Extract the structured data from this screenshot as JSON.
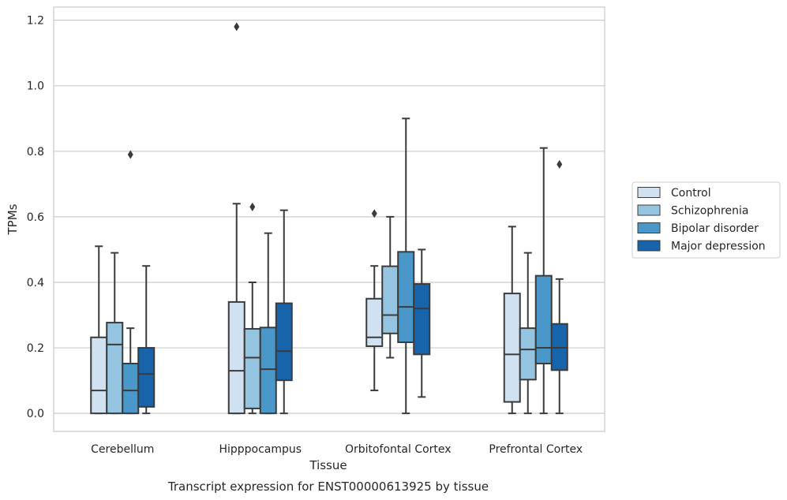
{
  "caption": "Transcript expression for ENST00000613925 by tissue",
  "chart_data": {
    "type": "box",
    "title": "",
    "xlabel": "Tissue",
    "ylabel": "TPMs",
    "ylim": [
      -0.055,
      1.24
    ],
    "yticks": [
      0.0,
      0.2,
      0.4,
      0.6,
      0.8,
      1.0,
      1.2
    ],
    "ytick_labels": [
      "0.0",
      "0.2",
      "0.4",
      "0.6",
      "0.8",
      "1.0",
      "1.2"
    ],
    "grid": "horizontal",
    "legend_position": "right",
    "categories": [
      "Cerebellum",
      "Hipppocampus",
      "Orbitofontal Cortex",
      "Prefrontal Cortex"
    ],
    "series": [
      {
        "name": "Control",
        "color": "#d0e1f2",
        "boxes": [
          {
            "category": "Cerebellum",
            "whisker_low": 0.0,
            "q1": 0.0,
            "median": 0.07,
            "q3": 0.232,
            "whisker_high": 0.51,
            "outliers": []
          },
          {
            "category": "Hipppocampus",
            "whisker_low": 0.0,
            "q1": 0.0,
            "median": 0.13,
            "q3": 0.34,
            "whisker_high": 0.64,
            "outliers": [
              1.18
            ]
          },
          {
            "category": "Orbitofontal Cortex",
            "whisker_low": 0.07,
            "q1": 0.205,
            "median": 0.232,
            "q3": 0.35,
            "whisker_high": 0.45,
            "outliers": [
              0.61
            ]
          },
          {
            "category": "Prefrontal Cortex",
            "whisker_low": 0.0,
            "q1": 0.035,
            "median": 0.18,
            "q3": 0.366,
            "whisker_high": 0.57,
            "outliers": []
          }
        ]
      },
      {
        "name": "Schizophrenia",
        "color": "#94c4df",
        "boxes": [
          {
            "category": "Cerebellum",
            "whisker_low": 0.0,
            "q1": 0.0,
            "median": 0.21,
            "q3": 0.277,
            "whisker_high": 0.49,
            "outliers": []
          },
          {
            "category": "Hipppocampus",
            "whisker_low": 0.0,
            "q1": 0.015,
            "median": 0.17,
            "q3": 0.258,
            "whisker_high": 0.4,
            "outliers": [
              0.63
            ]
          },
          {
            "category": "Orbitofontal Cortex",
            "whisker_low": 0.17,
            "q1": 0.244,
            "median": 0.3,
            "q3": 0.449,
            "whisker_high": 0.6,
            "outliers": []
          },
          {
            "category": "Prefrontal Cortex",
            "whisker_low": 0.0,
            "q1": 0.103,
            "median": 0.195,
            "q3": 0.26,
            "whisker_high": 0.49,
            "outliers": []
          }
        ]
      },
      {
        "name": "Bipolar disorder",
        "color": "#4a98c9",
        "boxes": [
          {
            "category": "Cerebellum",
            "whisker_low": 0.0,
            "q1": 0.0,
            "median": 0.07,
            "q3": 0.152,
            "whisker_high": 0.26,
            "outliers": [
              0.79
            ]
          },
          {
            "category": "Hipppocampus",
            "whisker_low": 0.0,
            "q1": 0.0,
            "median": 0.135,
            "q3": 0.262,
            "whisker_high": 0.55,
            "outliers": []
          },
          {
            "category": "Orbitofontal Cortex",
            "whisker_low": 0.0,
            "q1": 0.217,
            "median": 0.325,
            "q3": 0.493,
            "whisker_high": 0.9,
            "outliers": []
          },
          {
            "category": "Prefrontal Cortex",
            "whisker_low": 0.0,
            "q1": 0.152,
            "median": 0.2,
            "q3": 0.42,
            "whisker_high": 0.81,
            "outliers": []
          }
        ]
      },
      {
        "name": "Major depression",
        "color": "#1764ab",
        "boxes": [
          {
            "category": "Cerebellum",
            "whisker_low": 0.0,
            "q1": 0.02,
            "median": 0.12,
            "q3": 0.2,
            "whisker_high": 0.45,
            "outliers": []
          },
          {
            "category": "Hipppocampus",
            "whisker_low": 0.0,
            "q1": 0.101,
            "median": 0.19,
            "q3": 0.336,
            "whisker_high": 0.62,
            "outliers": []
          },
          {
            "category": "Orbitofontal Cortex",
            "whisker_low": 0.05,
            "q1": 0.18,
            "median": 0.32,
            "q3": 0.395,
            "whisker_high": 0.5,
            "outliers": []
          },
          {
            "category": "Prefrontal Cortex",
            "whisker_low": 0.0,
            "q1": 0.132,
            "median": 0.2,
            "q3": 0.273,
            "whisker_high": 0.41,
            "outliers": [
              0.76
            ]
          }
        ]
      }
    ]
  }
}
